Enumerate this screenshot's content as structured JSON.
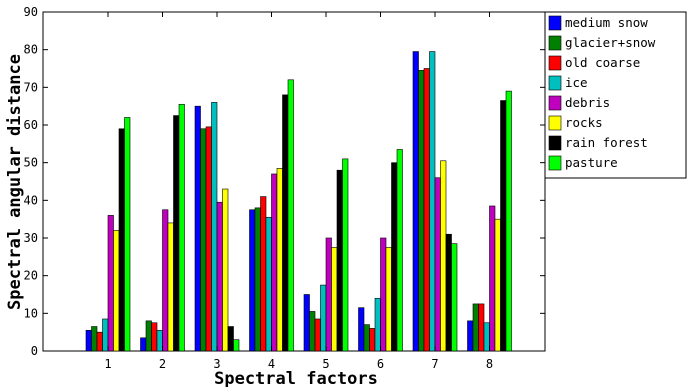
{
  "chart_data": {
    "type": "bar",
    "title": "",
    "xlabel": "Spectral factors",
    "ylabel": "Spectral angular distance",
    "categories": [
      "1",
      "2",
      "3",
      "4",
      "5",
      "6",
      "7",
      "8"
    ],
    "ylim": [
      0,
      90
    ],
    "yticks": [
      "0",
      "10",
      "20",
      "30",
      "40",
      "50",
      "60",
      "70",
      "80",
      "90"
    ],
    "grid": false,
    "legend_position": "outside-right",
    "series": [
      {
        "name": "medium snow",
        "color": "#0000ff",
        "values": [
          5.5,
          3.5,
          65,
          37.5,
          15,
          11.5,
          79.5,
          8
        ]
      },
      {
        "name": "glacier+snow",
        "color": "#008000",
        "values": [
          6.5,
          8,
          59,
          38,
          10.5,
          7,
          74.5,
          12.5
        ]
      },
      {
        "name": "old coarse",
        "color": "#ff0000",
        "values": [
          5,
          7.5,
          59.5,
          41,
          8.5,
          6,
          75,
          12.5
        ]
      },
      {
        "name": "ice",
        "color": "#00bfbf",
        "values": [
          8.5,
          5.5,
          66,
          35.5,
          17.5,
          14,
          79.5,
          7.5
        ]
      },
      {
        "name": "debris",
        "color": "#bf00bf",
        "values": [
          36,
          37.5,
          39.5,
          47,
          30,
          30,
          46,
          38.5
        ]
      },
      {
        "name": "rocks",
        "color": "#ffff00",
        "values": [
          32,
          34,
          43,
          48.5,
          27.5,
          27.5,
          50.5,
          35
        ]
      },
      {
        "name": "rain forest",
        "color": "#000000",
        "values": [
          59,
          62.5,
          6.5,
          68,
          48,
          50,
          31,
          66.5
        ]
      },
      {
        "name": "pasture",
        "color": "#00ff00",
        "values": [
          62,
          65.5,
          3,
          72,
          51,
          53.5,
          28.5,
          69
        ]
      }
    ]
  }
}
